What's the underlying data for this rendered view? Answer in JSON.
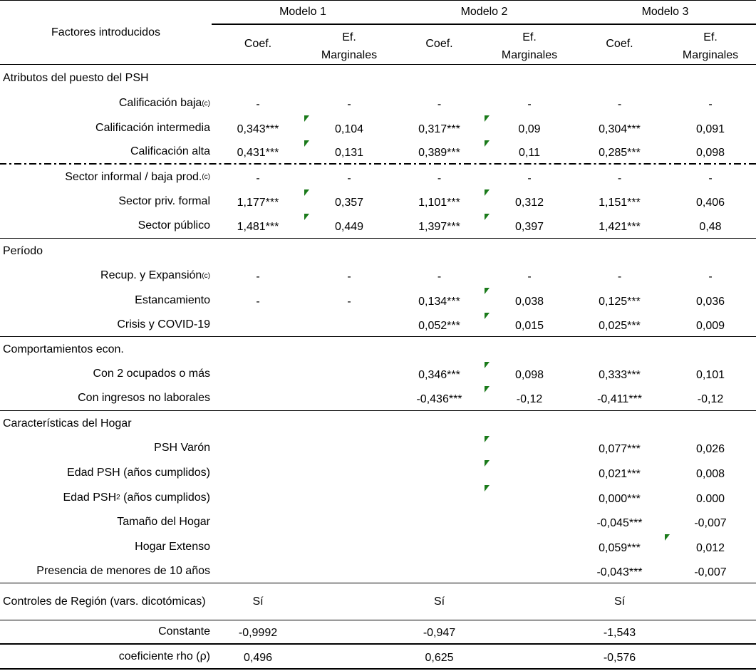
{
  "header": {
    "factors_label": "Factores introducidos",
    "models": [
      "Modelo 1",
      "Modelo 2",
      "Modelo 3"
    ],
    "coef_label": "Coef.",
    "ef_label_line1": "Ef.",
    "ef_label_line2": "Marginales"
  },
  "comment_marker_color": "#1a7a1a",
  "rows": [
    {
      "label": "Atributos del puesto del PSH",
      "type": "section"
    },
    {
      "label": "Calificación baja",
      "sup": "(c)",
      "values": [
        "-",
        "-",
        "-",
        "-",
        "-",
        "-"
      ]
    },
    {
      "label": "Calificación intermedia",
      "values": [
        "0,343***",
        "0,104",
        "0,317***",
        "0,09",
        "0,304***",
        "0,091"
      ],
      "comments": [
        1,
        3
      ]
    },
    {
      "label": "Calificación alta",
      "values": [
        "0,431***",
        "0,131",
        "0,389***",
        "0,11",
        "0,285***",
        "0,098"
      ],
      "comments": [
        1,
        3
      ]
    },
    {
      "label": "Sector informal / baja prod.",
      "sup": "(c)",
      "values": [
        "-",
        "-",
        "-",
        "-",
        "-",
        "-"
      ]
    },
    {
      "label": "Sector priv. formal",
      "values": [
        "1,177***",
        "0,357",
        "1,101***",
        "0,312",
        "1,151***",
        "0,406"
      ],
      "comments": [
        1,
        3
      ]
    },
    {
      "label": "Sector público",
      "values": [
        "1,481***",
        "0,449",
        "1,397***",
        "0,397",
        "1,421***",
        "0,48"
      ],
      "comments": [
        1,
        3
      ]
    },
    {
      "label": "Período",
      "type": "section"
    },
    {
      "label": "Recup. y Expansión",
      "sup": "(c)",
      "values": [
        "-",
        "-",
        "-",
        "-",
        "-",
        "-"
      ]
    },
    {
      "label": "Estancamiento",
      "values": [
        "-",
        "-",
        "0,134***",
        "0,038",
        "0,125***",
        "0,036"
      ],
      "comments": [
        3
      ]
    },
    {
      "label": "Crisis y COVID-19",
      "values": [
        "",
        "",
        "0,052***",
        "0,015",
        "0,025***",
        "0,009"
      ],
      "comments": [
        3
      ]
    },
    {
      "label": "Comportamientos econ.",
      "type": "section"
    },
    {
      "label": "Con 2 ocupados o más",
      "values": [
        "",
        "",
        "0,346***",
        "0,098",
        "0,333***",
        "0,101"
      ],
      "comments": [
        3
      ]
    },
    {
      "label": "Con ingresos no laborales",
      "values": [
        "",
        "",
        "-0,436***",
        "-0,12",
        "-0,411***",
        "-0,12"
      ],
      "comments": [
        3
      ]
    },
    {
      "label": "Características del Hogar",
      "type": "section"
    },
    {
      "label": "PSH Varón",
      "values": [
        "",
        "",
        "",
        "",
        "0,077***",
        "0,026"
      ],
      "comments": [
        3
      ]
    },
    {
      "label": "Edad PSH (años cumplidos)",
      "values": [
        "",
        "",
        "",
        "",
        "0,021***",
        "0,008"
      ],
      "comments": [
        3
      ]
    },
    {
      "label": "Edad PSH",
      "sup": "2",
      "label_suffix": " (años cumplidos)",
      "values": [
        "",
        "",
        "",
        "",
        "0,000***",
        "0.000"
      ],
      "comments": [
        3
      ]
    },
    {
      "label": "Tamaño del Hogar",
      "values": [
        "",
        "",
        "",
        "",
        "-0,045***",
        "-0,007"
      ]
    },
    {
      "label": "Hogar Extenso",
      "values": [
        "",
        "",
        "",
        "",
        "0,059***",
        "0,012"
      ],
      "comments": [
        5
      ]
    },
    {
      "label": "Presencia de menores de 10 años",
      "values": [
        "",
        "",
        "",
        "",
        "-0,043***",
        "-0,007"
      ]
    },
    {
      "label": "Controles de Región (vars. dicotómicas)",
      "type": "wrap",
      "values": [
        "Sí",
        "",
        "Sí",
        "",
        "Sí",
        ""
      ]
    },
    {
      "label": "Constante",
      "values": [
        "-0,9992",
        "",
        "-0,947",
        "",
        "-1,543",
        ""
      ]
    },
    {
      "label": "coeficiente rho (ρ)",
      "values": [
        "0,496",
        "",
        "0,625",
        "",
        "-0,576",
        ""
      ]
    }
  ]
}
